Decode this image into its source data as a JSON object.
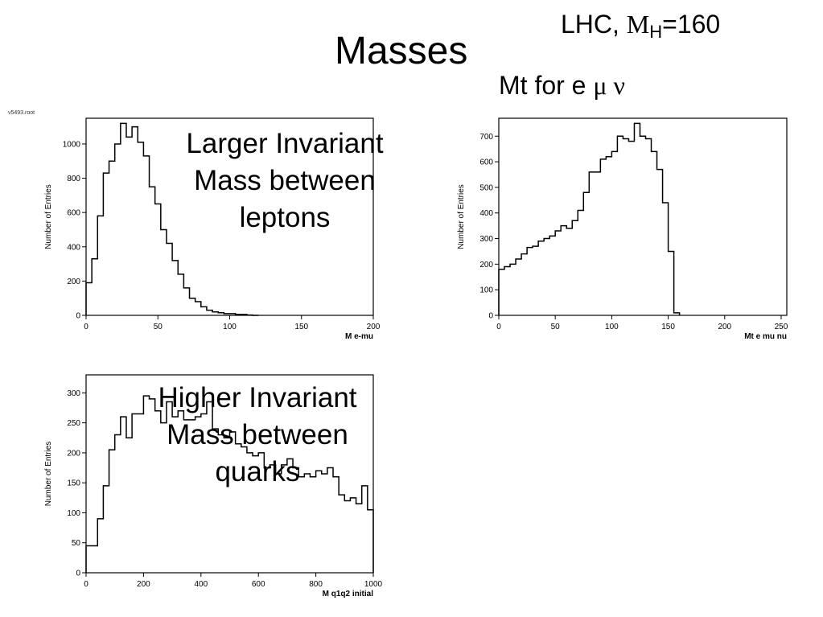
{
  "slide": {
    "title": "Masses",
    "lhc_prefix": "LHC, ",
    "lhc_m": "M",
    "lhc_sub": "H",
    "lhc_value": "=160",
    "mt_prefix": "Mt for e ",
    "mt_symbols": "μ ν",
    "note_larger_line1": "Larger Invariant",
    "note_larger_line2": "Mass between",
    "note_larger_line3": "leptons",
    "note_higher_line1": "Higher Invariant",
    "note_higher_line2": "Mass between",
    "note_higher_line3": "quarks",
    "file_label": "v5493.root"
  },
  "chart_data": [
    {
      "type": "bar",
      "xlabel": "M e-mu",
      "ylabel": "Number of Entries",
      "xlim": [
        0,
        200
      ],
      "ylim": [
        0,
        1150
      ],
      "xticks": [
        0,
        50,
        100,
        150,
        200
      ],
      "yticks": [
        0,
        200,
        400,
        600,
        800,
        1000
      ],
      "bin_edges": [
        0,
        4,
        8,
        12,
        16,
        20,
        24,
        28,
        32,
        36,
        40,
        44,
        48,
        52,
        56,
        60,
        64,
        68,
        72,
        76,
        80,
        84,
        88,
        92,
        96,
        100,
        104,
        108,
        112,
        116,
        120
      ],
      "values": [
        190,
        330,
        580,
        830,
        900,
        1000,
        1120,
        1040,
        1100,
        1010,
        930,
        750,
        650,
        500,
        420,
        320,
        240,
        160,
        100,
        80,
        50,
        30,
        20,
        15,
        10,
        10,
        5,
        5,
        2,
        0
      ],
      "gridlines": false,
      "legend": "none"
    },
    {
      "type": "bar",
      "xlabel": "Mt e mu nu",
      "ylabel": "Number of Entries",
      "xlim": [
        0,
        255
      ],
      "ylim": [
        0,
        770
      ],
      "xticks": [
        0,
        50,
        100,
        150,
        200,
        250
      ],
      "yticks": [
        0,
        100,
        200,
        300,
        400,
        500,
        600,
        700
      ],
      "bin_edges": [
        0,
        5,
        10,
        15,
        20,
        25,
        30,
        35,
        40,
        45,
        50,
        55,
        60,
        65,
        70,
        75,
        80,
        85,
        90,
        95,
        100,
        105,
        110,
        115,
        120,
        125,
        130,
        135,
        140,
        145,
        150,
        155,
        160
      ],
      "values": [
        180,
        190,
        200,
        220,
        240,
        265,
        270,
        290,
        300,
        310,
        330,
        350,
        340,
        370,
        410,
        480,
        560,
        560,
        610,
        620,
        640,
        700,
        690,
        680,
        750,
        700,
        690,
        640,
        570,
        440,
        250,
        10
      ],
      "gridlines": false,
      "legend": "none"
    },
    {
      "type": "bar",
      "xlabel": "M q1q2 initial",
      "ylabel": "Number of Entries",
      "xlim": [
        0,
        1000
      ],
      "ylim": [
        0,
        330
      ],
      "xticks": [
        0,
        200,
        400,
        600,
        800,
        1000
      ],
      "yticks": [
        0,
        50,
        100,
        150,
        200,
        250,
        300
      ],
      "bin_edges": [
        0,
        20,
        40,
        60,
        80,
        100,
        120,
        140,
        160,
        180,
        200,
        220,
        240,
        260,
        280,
        300,
        320,
        340,
        360,
        380,
        400,
        420,
        440,
        460,
        480,
        500,
        520,
        540,
        560,
        580,
        600,
        620,
        640,
        660,
        680,
        700,
        720,
        740,
        760,
        780,
        800,
        820,
        840,
        860,
        880,
        900,
        920,
        940,
        960,
        980,
        1000
      ],
      "values": [
        45,
        45,
        90,
        145,
        205,
        230,
        260,
        225,
        265,
        265,
        295,
        290,
        270,
        250,
        285,
        260,
        270,
        255,
        255,
        260,
        265,
        285,
        240,
        230,
        225,
        235,
        215,
        210,
        200,
        195,
        200,
        175,
        180,
        165,
        180,
        190,
        175,
        160,
        165,
        160,
        170,
        165,
        175,
        160,
        130,
        120,
        125,
        115,
        145,
        105
      ],
      "gridlines": false,
      "legend": "none"
    }
  ]
}
